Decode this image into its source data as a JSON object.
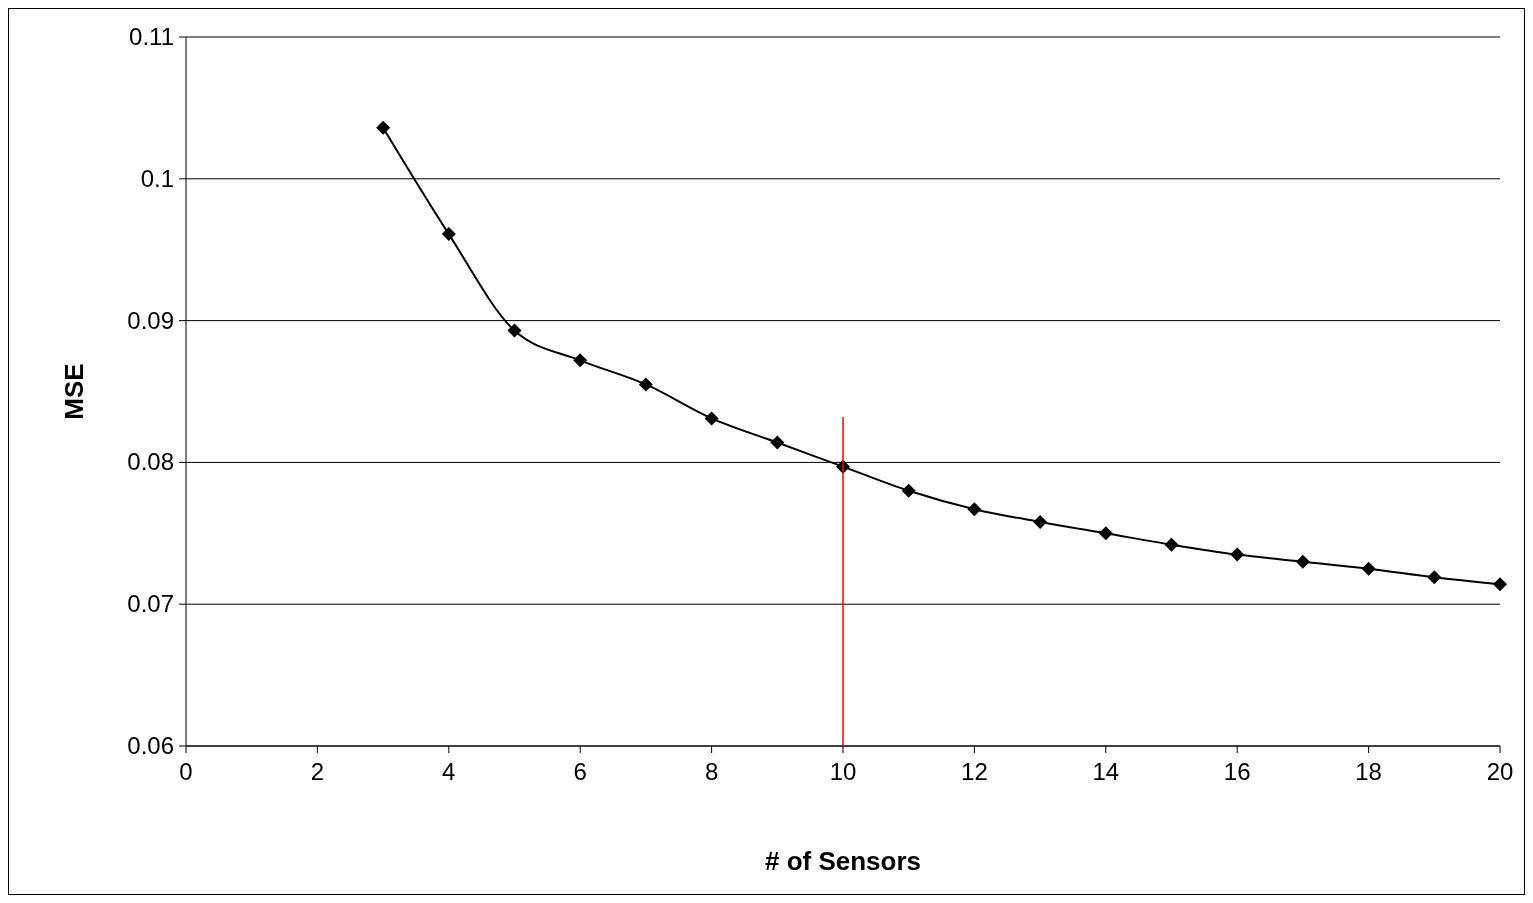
{
  "chart_data": {
    "type": "line",
    "xlabel": "# of Sensors",
    "ylabel": "MSE",
    "xlim": [
      0,
      20
    ],
    "xticks": [
      0,
      2,
      4,
      6,
      8,
      10,
      12,
      14,
      16,
      18,
      20
    ],
    "ylim": [
      0.06,
      0.11
    ],
    "yticks": [
      0.06,
      0.07,
      0.08,
      0.09,
      0.1,
      0.11
    ],
    "grid": "y",
    "series": [
      {
        "color": "#000000",
        "marker": "diamond",
        "x": [
          3,
          4,
          5,
          6,
          7,
          8,
          9,
          10,
          11,
          12,
          13,
          14,
          15,
          16,
          17,
          18,
          19,
          20
        ],
        "values": [
          0.1036,
          0.0961,
          0.0893,
          0.0872,
          0.0855,
          0.0831,
          0.0814,
          0.0797,
          0.078,
          0.0767,
          0.0758,
          0.075,
          0.0742,
          0.0735,
          0.073,
          0.0725,
          0.0719,
          0.0714
        ]
      },
      {
        "color": "#ff0000",
        "marker": "none",
        "x": [
          10,
          10
        ],
        "values": [
          0.06,
          0.0832
        ]
      }
    ]
  }
}
